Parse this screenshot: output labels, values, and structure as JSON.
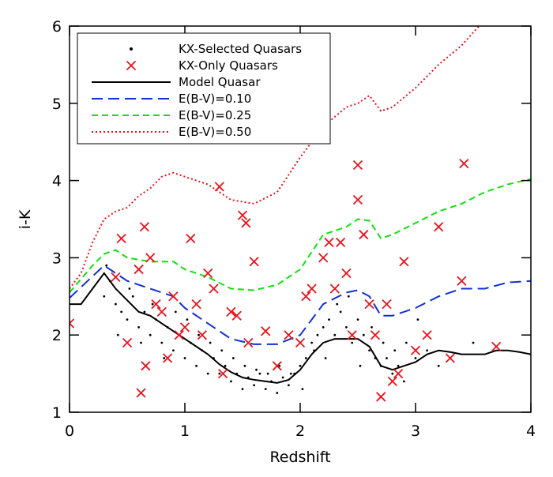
{
  "chart_data": {
    "type": "scatter",
    "x_label": "Redshift",
    "y_label": "i-K",
    "xlim": [
      0,
      4
    ],
    "xticks": [
      0,
      1,
      2,
      3,
      4
    ],
    "ylim": [
      1,
      6
    ],
    "yticks": [
      1,
      2,
      3,
      4,
      5,
      6
    ],
    "legend": "upper left",
    "series": [
      {
        "name": "KX-Selected Quasars",
        "type": "scatter",
        "marker": "dot",
        "color": "#000000",
        "x": [
          0.3,
          0.35,
          0.4,
          0.45,
          0.5,
          0.55,
          0.6,
          0.65,
          0.7,
          0.75,
          0.8,
          0.85,
          0.9,
          0.95,
          1.0,
          1.05,
          1.1,
          1.15,
          1.2,
          1.25,
          1.3,
          1.35,
          1.4,
          1.45,
          1.5,
          1.55,
          1.6,
          1.65,
          1.7,
          1.75,
          1.8,
          1.85,
          1.9,
          1.95,
          2.0,
          2.05,
          2.1,
          2.15,
          2.2,
          2.25,
          2.3,
          2.35,
          2.4,
          2.45,
          2.5,
          2.55,
          2.6,
          2.65,
          2.7,
          2.75,
          2.8,
          2.85,
          2.9,
          3.0,
          3.1,
          3.2,
          0.32,
          0.42,
          0.52,
          0.62,
          0.72,
          0.82,
          0.92,
          1.02,
          1.12,
          1.22,
          1.32,
          1.42,
          1.52,
          1.62,
          1.72,
          1.82,
          1.92,
          2.02,
          2.12,
          2.22,
          2.32,
          2.42,
          2.52,
          2.62,
          2.72,
          2.82,
          2.92,
          3.02,
          3.3,
          3.5
        ],
        "values": [
          2.5,
          2.7,
          2.4,
          2.3,
          2.2,
          2.5,
          2.1,
          2.3,
          2.0,
          2.2,
          1.9,
          2.1,
          1.8,
          2.0,
          1.7,
          1.9,
          1.6,
          1.8,
          1.5,
          1.7,
          1.5,
          1.6,
          1.4,
          1.5,
          1.3,
          1.45,
          1.35,
          1.5,
          1.3,
          1.4,
          1.25,
          1.45,
          1.35,
          1.5,
          1.6,
          1.7,
          1.9,
          2.0,
          2.1,
          2.2,
          2.0,
          2.3,
          2.1,
          1.9,
          2.2,
          2.0,
          1.8,
          1.7,
          1.6,
          1.7,
          1.5,
          1.6,
          1.4,
          1.7,
          1.8,
          1.6,
          2.9,
          2.0,
          2.6,
          1.9,
          2.4,
          1.7,
          2.3,
          2.2,
          2.0,
          1.9,
          1.8,
          1.7,
          1.6,
          1.55,
          1.5,
          1.6,
          1.5,
          1.3,
          1.8,
          1.7,
          2.4,
          2.5,
          1.6,
          2.1,
          1.9,
          1.8,
          1.9,
          2.2,
          1.7,
          1.9
        ]
      },
      {
        "name": "KX-Only Quasars",
        "type": "scatter",
        "marker": "x",
        "color": "#e8141c",
        "x": [
          0.0,
          0.4,
          0.45,
          0.5,
          0.6,
          0.62,
          0.65,
          0.66,
          0.7,
          0.75,
          0.8,
          0.85,
          0.9,
          0.95,
          1.0,
          1.05,
          1.1,
          1.15,
          1.2,
          1.25,
          1.3,
          1.33,
          1.4,
          1.45,
          1.5,
          1.53,
          1.55,
          1.6,
          1.7,
          1.8,
          1.9,
          2.0,
          2.05,
          2.1,
          2.2,
          2.25,
          2.3,
          2.35,
          2.4,
          2.45,
          2.5,
          2.5,
          2.55,
          2.6,
          2.65,
          2.7,
          2.75,
          2.8,
          2.85,
          2.9,
          3.0,
          3.1,
          3.2,
          3.3,
          3.4,
          3.42,
          3.7
        ],
        "values": [
          2.15,
          2.75,
          3.25,
          1.9,
          2.85,
          1.25,
          3.4,
          1.6,
          3.0,
          2.4,
          2.3,
          1.7,
          2.5,
          2.0,
          2.1,
          3.25,
          2.4,
          2.0,
          2.8,
          2.6,
          3.92,
          1.5,
          2.3,
          2.25,
          3.55,
          3.45,
          1.9,
          2.95,
          2.05,
          1.6,
          2.0,
          1.9,
          2.5,
          2.6,
          3.0,
          3.2,
          2.6,
          3.2,
          2.8,
          2.0,
          4.2,
          3.75,
          3.3,
          2.4,
          2.0,
          1.2,
          2.4,
          1.4,
          1.5,
          2.95,
          1.8,
          2.0,
          3.4,
          1.7,
          2.7,
          4.22,
          1.85
        ]
      },
      {
        "name": "Model Quasar",
        "type": "line",
        "dash": "solid",
        "color": "#000000",
        "x": [
          0,
          0.1,
          0.2,
          0.3,
          0.4,
          0.5,
          0.6,
          0.7,
          0.8,
          0.9,
          1.0,
          1.1,
          1.2,
          1.3,
          1.4,
          1.5,
          1.6,
          1.7,
          1.8,
          1.9,
          2.0,
          2.1,
          2.2,
          2.3,
          2.4,
          2.5,
          2.6,
          2.7,
          2.8,
          2.9,
          3.0,
          3.1,
          3.2,
          3.3,
          3.4,
          3.5,
          3.6,
          3.7,
          3.8,
          3.9,
          4.0
        ],
        "values": [
          2.4,
          2.4,
          2.6,
          2.8,
          2.6,
          2.45,
          2.3,
          2.25,
          2.15,
          2.05,
          1.95,
          1.85,
          1.75,
          1.62,
          1.52,
          1.45,
          1.42,
          1.4,
          1.38,
          1.42,
          1.55,
          1.75,
          1.9,
          1.95,
          1.95,
          1.95,
          1.85,
          1.6,
          1.55,
          1.6,
          1.65,
          1.75,
          1.8,
          1.78,
          1.75,
          1.75,
          1.75,
          1.8,
          1.8,
          1.78,
          1.75
        ]
      },
      {
        "name": "E(B-V)=0.10",
        "type": "line",
        "dash": "dashed",
        "color": "#1030d8",
        "x": [
          0,
          0.3,
          0.5,
          0.7,
          0.9,
          1.0,
          1.2,
          1.4,
          1.6,
          1.8,
          2.0,
          2.2,
          2.4,
          2.5,
          2.6,
          2.7,
          2.8,
          3.0,
          3.2,
          3.4,
          3.6,
          3.8,
          4.0
        ],
        "values": [
          2.48,
          2.9,
          2.7,
          2.6,
          2.5,
          2.35,
          2.15,
          1.95,
          1.88,
          1.88,
          2.0,
          2.4,
          2.55,
          2.58,
          2.5,
          2.25,
          2.25,
          2.35,
          2.5,
          2.6,
          2.6,
          2.68,
          2.7
        ]
      },
      {
        "name": "E(B-V)=0.25",
        "type": "line",
        "dash": "short-dashed",
        "color": "#10e010",
        "x": [
          0,
          0.2,
          0.3,
          0.4,
          0.5,
          0.7,
          0.9,
          1.0,
          1.2,
          1.4,
          1.6,
          1.8,
          2.0,
          2.2,
          2.4,
          2.5,
          2.6,
          2.7,
          2.8,
          3.0,
          3.2,
          3.4,
          3.6,
          3.8,
          4.0
        ],
        "values": [
          2.55,
          2.9,
          3.05,
          3.1,
          3.0,
          2.95,
          2.95,
          2.85,
          2.75,
          2.6,
          2.58,
          2.65,
          2.85,
          3.3,
          3.4,
          3.5,
          3.48,
          3.25,
          3.3,
          3.45,
          3.6,
          3.7,
          3.85,
          3.95,
          4.02
        ]
      },
      {
        "name": "E(B-V)=0.50",
        "type": "line",
        "dash": "dotted",
        "color": "#e8141c",
        "x": [
          0,
          0.1,
          0.2,
          0.3,
          0.4,
          0.5,
          0.6,
          0.7,
          0.8,
          0.9,
          1.0,
          1.2,
          1.4,
          1.6,
          1.8,
          2.0,
          2.2,
          2.4,
          2.5,
          2.6,
          2.7,
          2.8,
          3.0,
          3.2,
          3.4,
          3.55
        ],
        "values": [
          2.6,
          2.8,
          3.2,
          3.5,
          3.6,
          3.65,
          3.8,
          3.9,
          4.05,
          4.1,
          4.05,
          3.95,
          3.75,
          3.7,
          3.85,
          4.3,
          4.7,
          4.95,
          5.0,
          5.1,
          4.9,
          4.95,
          5.2,
          5.5,
          5.75,
          6.0
        ]
      }
    ]
  }
}
